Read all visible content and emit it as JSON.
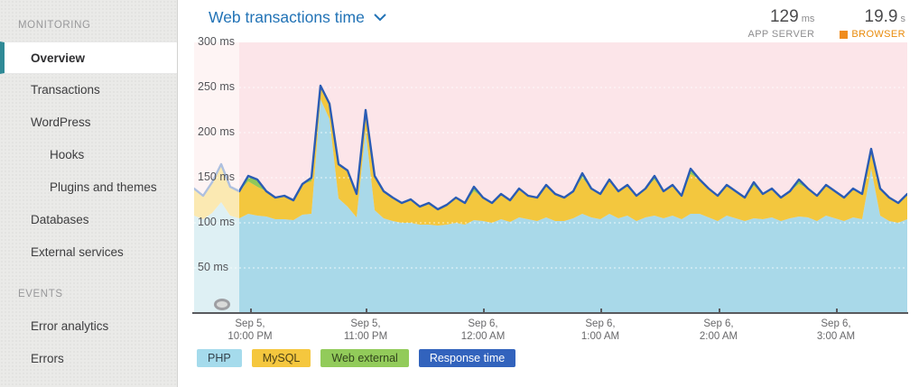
{
  "sidebar": {
    "sections": [
      {
        "header": "MONITORING",
        "items": [
          {
            "label": "Overview",
            "selected": true,
            "indent": 0
          },
          {
            "label": "Transactions",
            "selected": false,
            "indent": 0
          },
          {
            "label": "WordPress",
            "selected": false,
            "indent": 0
          },
          {
            "label": "Hooks",
            "selected": false,
            "indent": 1
          },
          {
            "label": "Plugins and themes",
            "selected": false,
            "indent": 1
          },
          {
            "label": "Databases",
            "selected": false,
            "indent": 0
          },
          {
            "label": "External services",
            "selected": false,
            "indent": 0
          }
        ]
      },
      {
        "header": "EVENTS",
        "items": [
          {
            "label": "Error analytics",
            "selected": false,
            "indent": 0
          },
          {
            "label": "Errors",
            "selected": false,
            "indent": 0
          }
        ]
      }
    ]
  },
  "header": {
    "title": "Web transactions time",
    "metrics": [
      {
        "value": "129",
        "unit": "ms",
        "label": "APP SERVER",
        "label_color": "#8e8e90",
        "marker": null
      },
      {
        "value": "19.9",
        "unit": "s",
        "label": "BROWSER",
        "label_color": "#e98b0b",
        "marker": "#f08c1e"
      }
    ]
  },
  "chart_data": {
    "type": "area",
    "stacked": true,
    "title": "Web transactions time",
    "ylabel": "ms",
    "ylim": [
      0,
      300
    ],
    "grid": true,
    "legend_position": "bottom",
    "plot_bg": "#fce5e9",
    "faded_points": 6,
    "y_ticks": [
      {
        "ms": 300,
        "label": "300 ms"
      },
      {
        "ms": 250,
        "label": "250 ms"
      },
      {
        "ms": 200,
        "label": "200 ms"
      },
      {
        "ms": 150,
        "label": "150 ms"
      },
      {
        "ms": 100,
        "label": "100 ms"
      },
      {
        "ms": 50,
        "label": "50 ms"
      }
    ],
    "x_ticks": [
      {
        "line1": "Sep 5,",
        "line2": "10:00 PM",
        "pos": 62
      },
      {
        "line1": "Sep 5,",
        "line2": "11:00 PM",
        "pos": 190
      },
      {
        "line1": "Sep 6,",
        "line2": "12:00 AM",
        "pos": 320
      },
      {
        "line1": "Sep 6,",
        "line2": "1:00 AM",
        "pos": 450
      },
      {
        "line1": "Sep 6,",
        "line2": "2:00 AM",
        "pos": 581
      },
      {
        "line1": "Sep 6,",
        "line2": "3:00 AM",
        "pos": 711
      }
    ],
    "series": [
      {
        "name": "PHP",
        "type": "area",
        "color": "#a9d9e9",
        "values": [
          108,
          104,
          111,
          123,
          108,
          105,
          110,
          108,
          107,
          104,
          104,
          103,
          109,
          110,
          237,
          215,
          127,
          118,
          106,
          203,
          114,
          105,
          102,
          100,
          100,
          98,
          98,
          97,
          98,
          100,
          98,
          103,
          102,
          100,
          104,
          101,
          106,
          104,
          102,
          106,
          102,
          102,
          105,
          110,
          106,
          104,
          110,
          105,
          108,
          102,
          106,
          108,
          105,
          108,
          104,
          110,
          110,
          106,
          102,
          108,
          105,
          102,
          105,
          104,
          106,
          102,
          105,
          107,
          106,
          102,
          108,
          105,
          102,
          106,
          104,
          160,
          108,
          102,
          100,
          104
        ]
      },
      {
        "name": "MySQL",
        "type": "area",
        "color": "#f3c73e",
        "values": [
          30,
          26,
          34,
          42,
          32,
          30,
          36,
          32,
          28,
          24,
          26,
          22,
          34,
          36,
          15,
          17,
          38,
          40,
          26,
          22,
          38,
          30,
          26,
          22,
          26,
          20,
          24,
          18,
          22,
          28,
          24,
          32,
          26,
          22,
          28,
          24,
          32,
          26,
          26,
          36,
          30,
          26,
          30,
          40,
          32,
          28,
          38,
          30,
          34,
          28,
          32,
          40,
          30,
          34,
          26,
          44,
          38,
          32,
          28,
          34,
          30,
          26,
          36,
          28,
          32,
          26,
          30,
          36,
          32,
          28,
          34,
          30,
          26,
          32,
          28,
          22,
          30,
          26,
          22,
          28
        ]
      },
      {
        "name": "Web external",
        "type": "area",
        "color": "#8fc858",
        "values": [
          0,
          0,
          0,
          0,
          0,
          0,
          6,
          8,
          0,
          0,
          0,
          0,
          0,
          4,
          0,
          0,
          0,
          0,
          0,
          0,
          0,
          0,
          0,
          0,
          0,
          0,
          0,
          0,
          0,
          0,
          0,
          5,
          0,
          0,
          0,
          0,
          0,
          0,
          0,
          0,
          0,
          0,
          0,
          5,
          0,
          0,
          0,
          0,
          0,
          0,
          0,
          4,
          0,
          0,
          0,
          6,
          0,
          0,
          0,
          0,
          0,
          0,
          4,
          0,
          0,
          0,
          0,
          5,
          0,
          0,
          0,
          0,
          0,
          0,
          0,
          0,
          0,
          0,
          0,
          0
        ]
      },
      {
        "name": "Response time",
        "type": "line",
        "color": "#2b5cb4",
        "values": [
          138,
          130,
          145,
          165,
          140,
          135,
          152,
          148,
          135,
          128,
          130,
          125,
          143,
          150,
          252,
          232,
          165,
          158,
          132,
          225,
          152,
          135,
          128,
          122,
          126,
          118,
          122,
          115,
          120,
          128,
          122,
          140,
          128,
          122,
          132,
          125,
          138,
          130,
          128,
          142,
          132,
          128,
          135,
          155,
          138,
          132,
          148,
          135,
          142,
          130,
          138,
          152,
          135,
          142,
          130,
          160,
          148,
          138,
          130,
          142,
          135,
          128,
          145,
          132,
          138,
          128,
          135,
          148,
          138,
          130,
          142,
          135,
          128,
          138,
          132,
          182,
          138,
          128,
          122,
          132
        ]
      }
    ],
    "legend": [
      {
        "label": "PHP",
        "bg": "#a5dbec",
        "fg": "#33414a"
      },
      {
        "label": "MySQL",
        "bg": "#f5c73e",
        "fg": "#4a3f16"
      },
      {
        "label": "Web external",
        "bg": "#92cb5a",
        "fg": "#32441c"
      },
      {
        "label": "Response time",
        "bg": "#3263bd",
        "fg": "#ffffff"
      }
    ]
  }
}
